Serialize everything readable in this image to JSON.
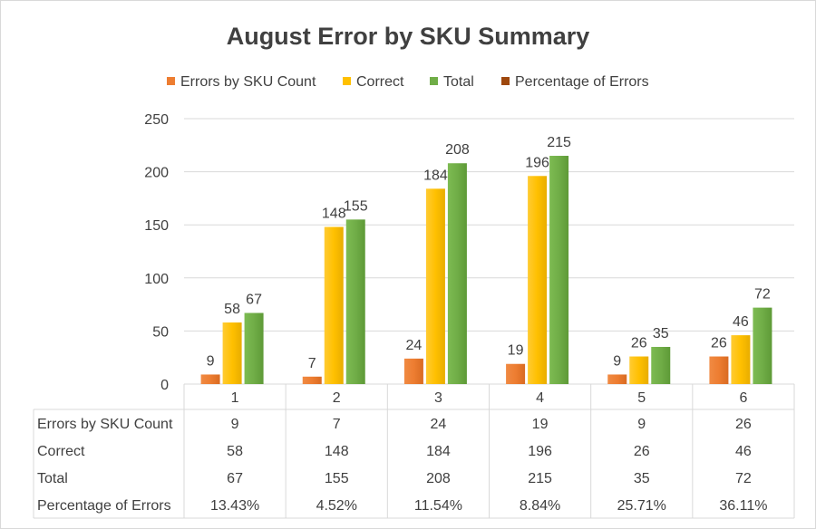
{
  "chart_data": {
    "type": "bar",
    "title": "August Error by SKU Summary",
    "categories": [
      "1",
      "2",
      "3",
      "4",
      "5",
      "6"
    ],
    "series": [
      {
        "name": "Errors by SKU Count",
        "values": [
          9,
          7,
          24,
          19,
          9,
          26
        ],
        "color": "#ed7d31"
      },
      {
        "name": "Correct",
        "values": [
          58,
          148,
          184,
          196,
          26,
          46
        ],
        "color": "#ffc000"
      },
      {
        "name": "Total",
        "values": [
          67,
          155,
          208,
          215,
          35,
          72
        ],
        "color": "#70ad47"
      },
      {
        "name": "Percentage of Errors",
        "values": [
          0.1343,
          0.0452,
          0.1154,
          0.0884,
          0.2571,
          0.3611
        ],
        "color": "#9e480e"
      }
    ],
    "yticks": [
      "0",
      "50",
      "100",
      "150",
      "200",
      "250"
    ],
    "ylim": [
      0,
      250
    ],
    "grid": true,
    "legend_position": "top",
    "data_table": {
      "rows": [
        {
          "label": "Errors by SKU Count",
          "cells": [
            "9",
            "7",
            "24",
            "19",
            "9",
            "26"
          ]
        },
        {
          "label": "Correct",
          "cells": [
            "58",
            "148",
            "184",
            "196",
            "26",
            "46"
          ]
        },
        {
          "label": "Total",
          "cells": [
            "67",
            "155",
            "208",
            "215",
            "35",
            "72"
          ]
        },
        {
          "label": "Percentage of Errors",
          "cells": [
            "13.43%",
            "4.52%",
            "11.54%",
            "8.84%",
            "25.71%",
            "36.11%"
          ]
        }
      ]
    }
  }
}
